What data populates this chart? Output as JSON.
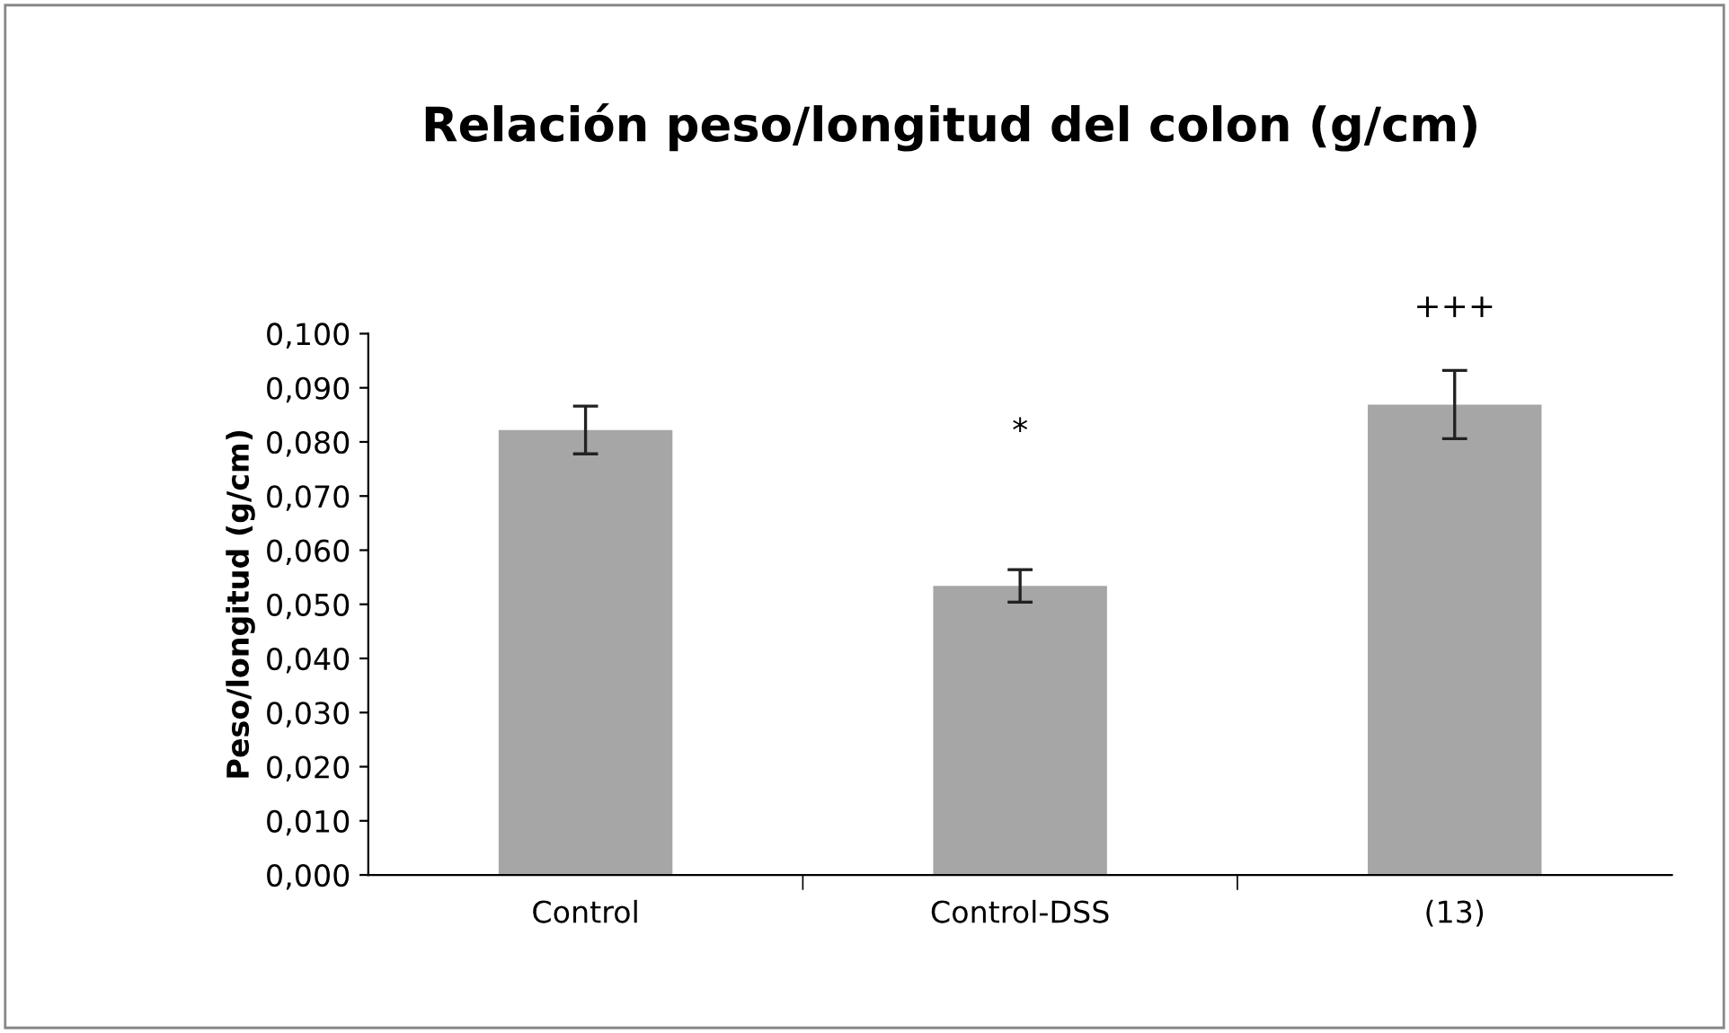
{
  "chart_data": {
    "type": "bar",
    "title": "Relación peso/longitud del colon (g/cm)",
    "ylabel": "Peso/longitud (g/cm)",
    "categories": [
      "Control",
      "Control-DSS",
      "(13)"
    ],
    "values": [
      0.0822,
      0.0534,
      0.0869
    ],
    "errors": [
      0.0044,
      0.003,
      0.0063
    ],
    "color": "#a6a6a6",
    "ylim": [
      0,
      0.1
    ],
    "yticks": [
      {
        "value": 0,
        "label": "0,000"
      },
      {
        "value": 0.01,
        "label": "0,010"
      },
      {
        "value": 0.02,
        "label": "0,020"
      },
      {
        "value": 0.03,
        "label": "0,030"
      },
      {
        "value": 0.04,
        "label": "0,040"
      },
      {
        "value": 0.05,
        "label": "0,050"
      },
      {
        "value": 0.06,
        "label": "0,060"
      },
      {
        "value": 0.07,
        "label": "0,070"
      },
      {
        "value": 0.08,
        "label": "0,080"
      },
      {
        "value": 0.09,
        "label": "0,090"
      },
      {
        "value": 0.1,
        "label": "0,100"
      }
    ],
    "annotations": [
      "*",
      "+++"
    ],
    "grid": false,
    "legend": false
  }
}
